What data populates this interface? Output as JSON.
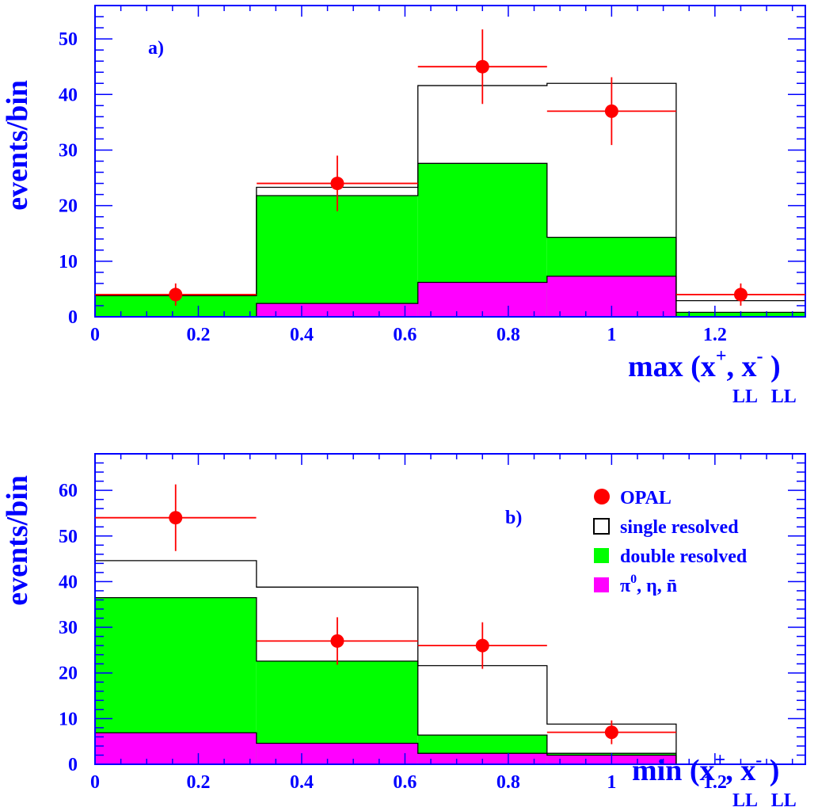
{
  "chart_data": [
    {
      "type": "bar",
      "panel_label": "a)",
      "ylabel": "events/bin",
      "xlabel": {
        "main": "max (x",
        "sup1": "+",
        "mid": ", x",
        "sup2": "-",
        "close": " )",
        "sub": "LL   LL"
      },
      "xlim": [
        0,
        1.375
      ],
      "ylim": [
        0,
        56
      ],
      "xticks": [
        0,
        0.2,
        0.4,
        0.6,
        0.8,
        1,
        1.2
      ],
      "xtick_labels": [
        "0",
        "0.2",
        "0.4",
        "0.6",
        "0.8",
        "1",
        "1.2"
      ],
      "yticks": [
        0,
        10,
        20,
        30,
        40,
        50
      ],
      "ytick_labels": [
        "0",
        "10",
        "20",
        "30",
        "40",
        "50"
      ],
      "bin_edges": [
        0,
        0.3125,
        0.625,
        0.875,
        1.125,
        1.375
      ],
      "series": [
        {
          "name": "single resolved",
          "style": "step-outline",
          "color": "#000000",
          "values": [
            3.8,
            23.3,
            41.6,
            42,
            2.9
          ]
        },
        {
          "name": "double resolved",
          "style": "filled",
          "color": "#00ff00",
          "values": [
            3.8,
            21.8,
            27.6,
            14.3,
            0.8
          ]
        },
        {
          "name": "π0, η, n̄",
          "style": "filled",
          "color": "#ff00ff",
          "values": [
            0,
            2.4,
            6.2,
            7.3,
            0
          ]
        },
        {
          "name": "OPAL",
          "style": "points",
          "color": "#ff0000",
          "x": [
            0.156,
            0.469,
            0.75,
            1.0,
            1.25
          ],
          "y": [
            4,
            24,
            45,
            37,
            4
          ],
          "xerr": [
            0.156,
            0.156,
            0.125,
            0.125,
            0.125
          ],
          "yerr": [
            2,
            5,
            6.7,
            6.1,
            2
          ]
        }
      ]
    },
    {
      "type": "bar",
      "panel_label": "b)",
      "ylabel": "events/bin",
      "xlabel": {
        "main": "min (x",
        "sup1": "+",
        "mid": ", x",
        "sup2": "-",
        "close": " )",
        "sub": "LL   LL"
      },
      "xlim": [
        0,
        1.375
      ],
      "ylim": [
        0,
        68
      ],
      "xticks": [
        0,
        0.2,
        0.4,
        0.6,
        0.8,
        1,
        1.2
      ],
      "xtick_labels": [
        "0",
        "0.2",
        "0.4",
        "0.6",
        "0.8",
        "1",
        "1.2"
      ],
      "yticks": [
        0,
        10,
        20,
        30,
        40,
        50,
        60
      ],
      "ytick_labels": [
        "0",
        "10",
        "20",
        "30",
        "40",
        "50",
        "60"
      ],
      "bin_edges": [
        0,
        0.3125,
        0.625,
        0.875,
        1.125
      ],
      "series": [
        {
          "name": "single resolved",
          "style": "step-outline",
          "color": "#000000",
          "values": [
            44.6,
            38.8,
            21.6,
            8.8
          ]
        },
        {
          "name": "double resolved",
          "style": "filled",
          "color": "#00ff00",
          "values": [
            36.5,
            22.6,
            6.4,
            2.4
          ]
        },
        {
          "name": "π0, η, n̄",
          "style": "filled",
          "color": "#ff00ff",
          "values": [
            6.9,
            4.6,
            2.4,
            2.0
          ]
        },
        {
          "name": "OPAL",
          "style": "points",
          "color": "#ff0000",
          "x": [
            0.156,
            0.469,
            0.75,
            1.0
          ],
          "y": [
            54,
            27,
            26,
            7
          ],
          "xerr": [
            0.156,
            0.156,
            0.125,
            0.125
          ],
          "yerr": [
            7.3,
            5.2,
            5.1,
            2.6
          ]
        }
      ],
      "legend": {
        "placement": "top-right",
        "entries": [
          {
            "label": "OPAL",
            "marker": "circle",
            "color": "#ff0000"
          },
          {
            "label": "single resolved",
            "marker": "open-box",
            "color": "#000000"
          },
          {
            "label": "double resolved",
            "marker": "filled-box",
            "color": "#00ff00"
          },
          {
            "label_parts": [
              "π",
              "0",
              ", η, n̄"
            ],
            "marker": "filled-box",
            "color": "#ff00ff"
          }
        ]
      }
    }
  ],
  "colors": {
    "axis_label": "#0000ff",
    "data_points": "#ff0000",
    "double_resolved": "#00ff00",
    "pi_eta_n": "#ff00ff"
  }
}
